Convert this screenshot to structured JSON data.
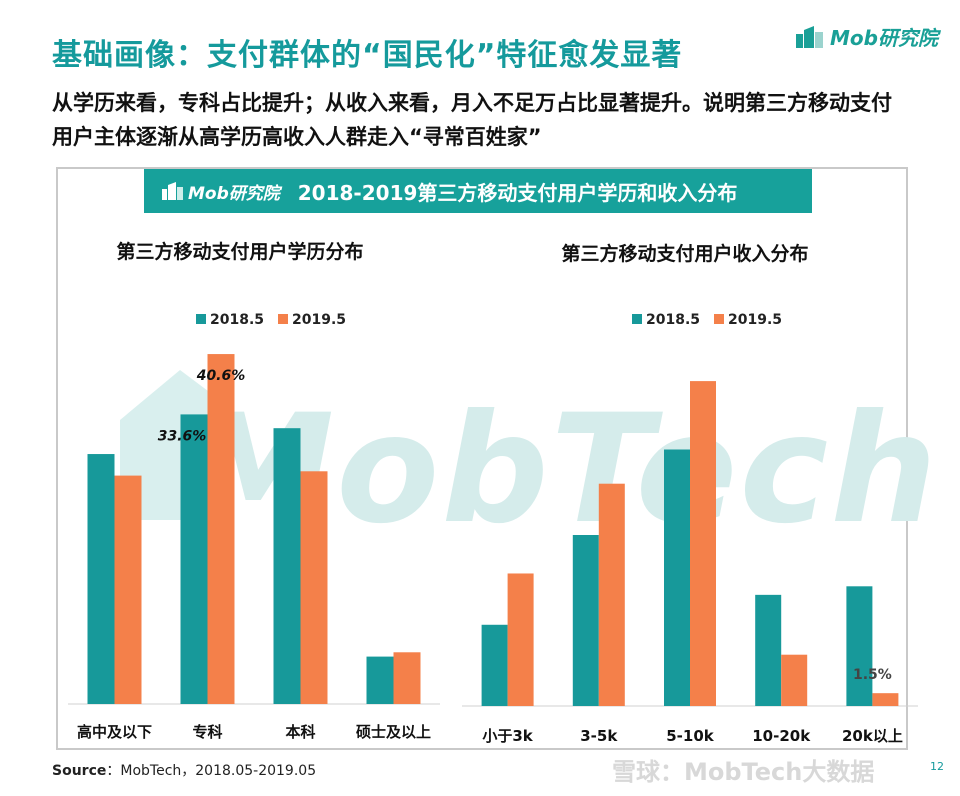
{
  "page": {
    "title": "基础画像：支付群体的“国民化”特征愈发显著",
    "subtitle": "从学历来看，专科占比提升；从收入来看，月入不足万占比显著提升。说明第三方移动支付用户主体逐渐从高学历高收入人群走入“寻常百姓家”",
    "logo_text": "Mob研究院",
    "banner_logo": "Mob研究院",
    "banner_title": "2018-2019第三方移动支付用户学历和收入分布",
    "watermark": "MobTech",
    "source_label": "Source",
    "source_text": "：MobTech，2018.05-2019.05",
    "footer_watermark": "雪球：MobTech大数据",
    "page_number": "12"
  },
  "colors": {
    "teal": "#17999a",
    "orange": "#f4804a",
    "title": "#159a9c"
  },
  "chart_data": [
    {
      "type": "bar",
      "title": "第三方移动支付用户学历分布",
      "categories": [
        "高中及以下",
        "专科",
        "本科",
        "硕士及以上"
      ],
      "series": [
        {
          "name": "2018.5",
          "values": [
            29,
            33.6,
            32,
            5.5
          ]
        },
        {
          "name": "2019.5",
          "values": [
            26.5,
            40.6,
            27,
            6
          ]
        }
      ],
      "data_labels": [
        {
          "series": 0,
          "index": 1,
          "text": "33.6%"
        },
        {
          "series": 1,
          "index": 1,
          "text": "40.6%"
        }
      ],
      "ylim": [
        0,
        42
      ],
      "legend": "top"
    },
    {
      "type": "bar",
      "title": "第三方移动支付用户收入分布",
      "categories": [
        "小于3k",
        "3-5k",
        "5-10k",
        "10-20k",
        "20k以上"
      ],
      "series": [
        {
          "name": "2018.5",
          "values": [
            9.5,
            20,
            30,
            13,
            14
          ]
        },
        {
          "name": "2019.5",
          "values": [
            15.5,
            26,
            38,
            6,
            1.5
          ]
        }
      ],
      "data_labels": [
        {
          "series": 1,
          "index": 4,
          "text": "1.5%"
        }
      ],
      "ylim": [
        0,
        40
      ],
      "legend": "top"
    }
  ]
}
